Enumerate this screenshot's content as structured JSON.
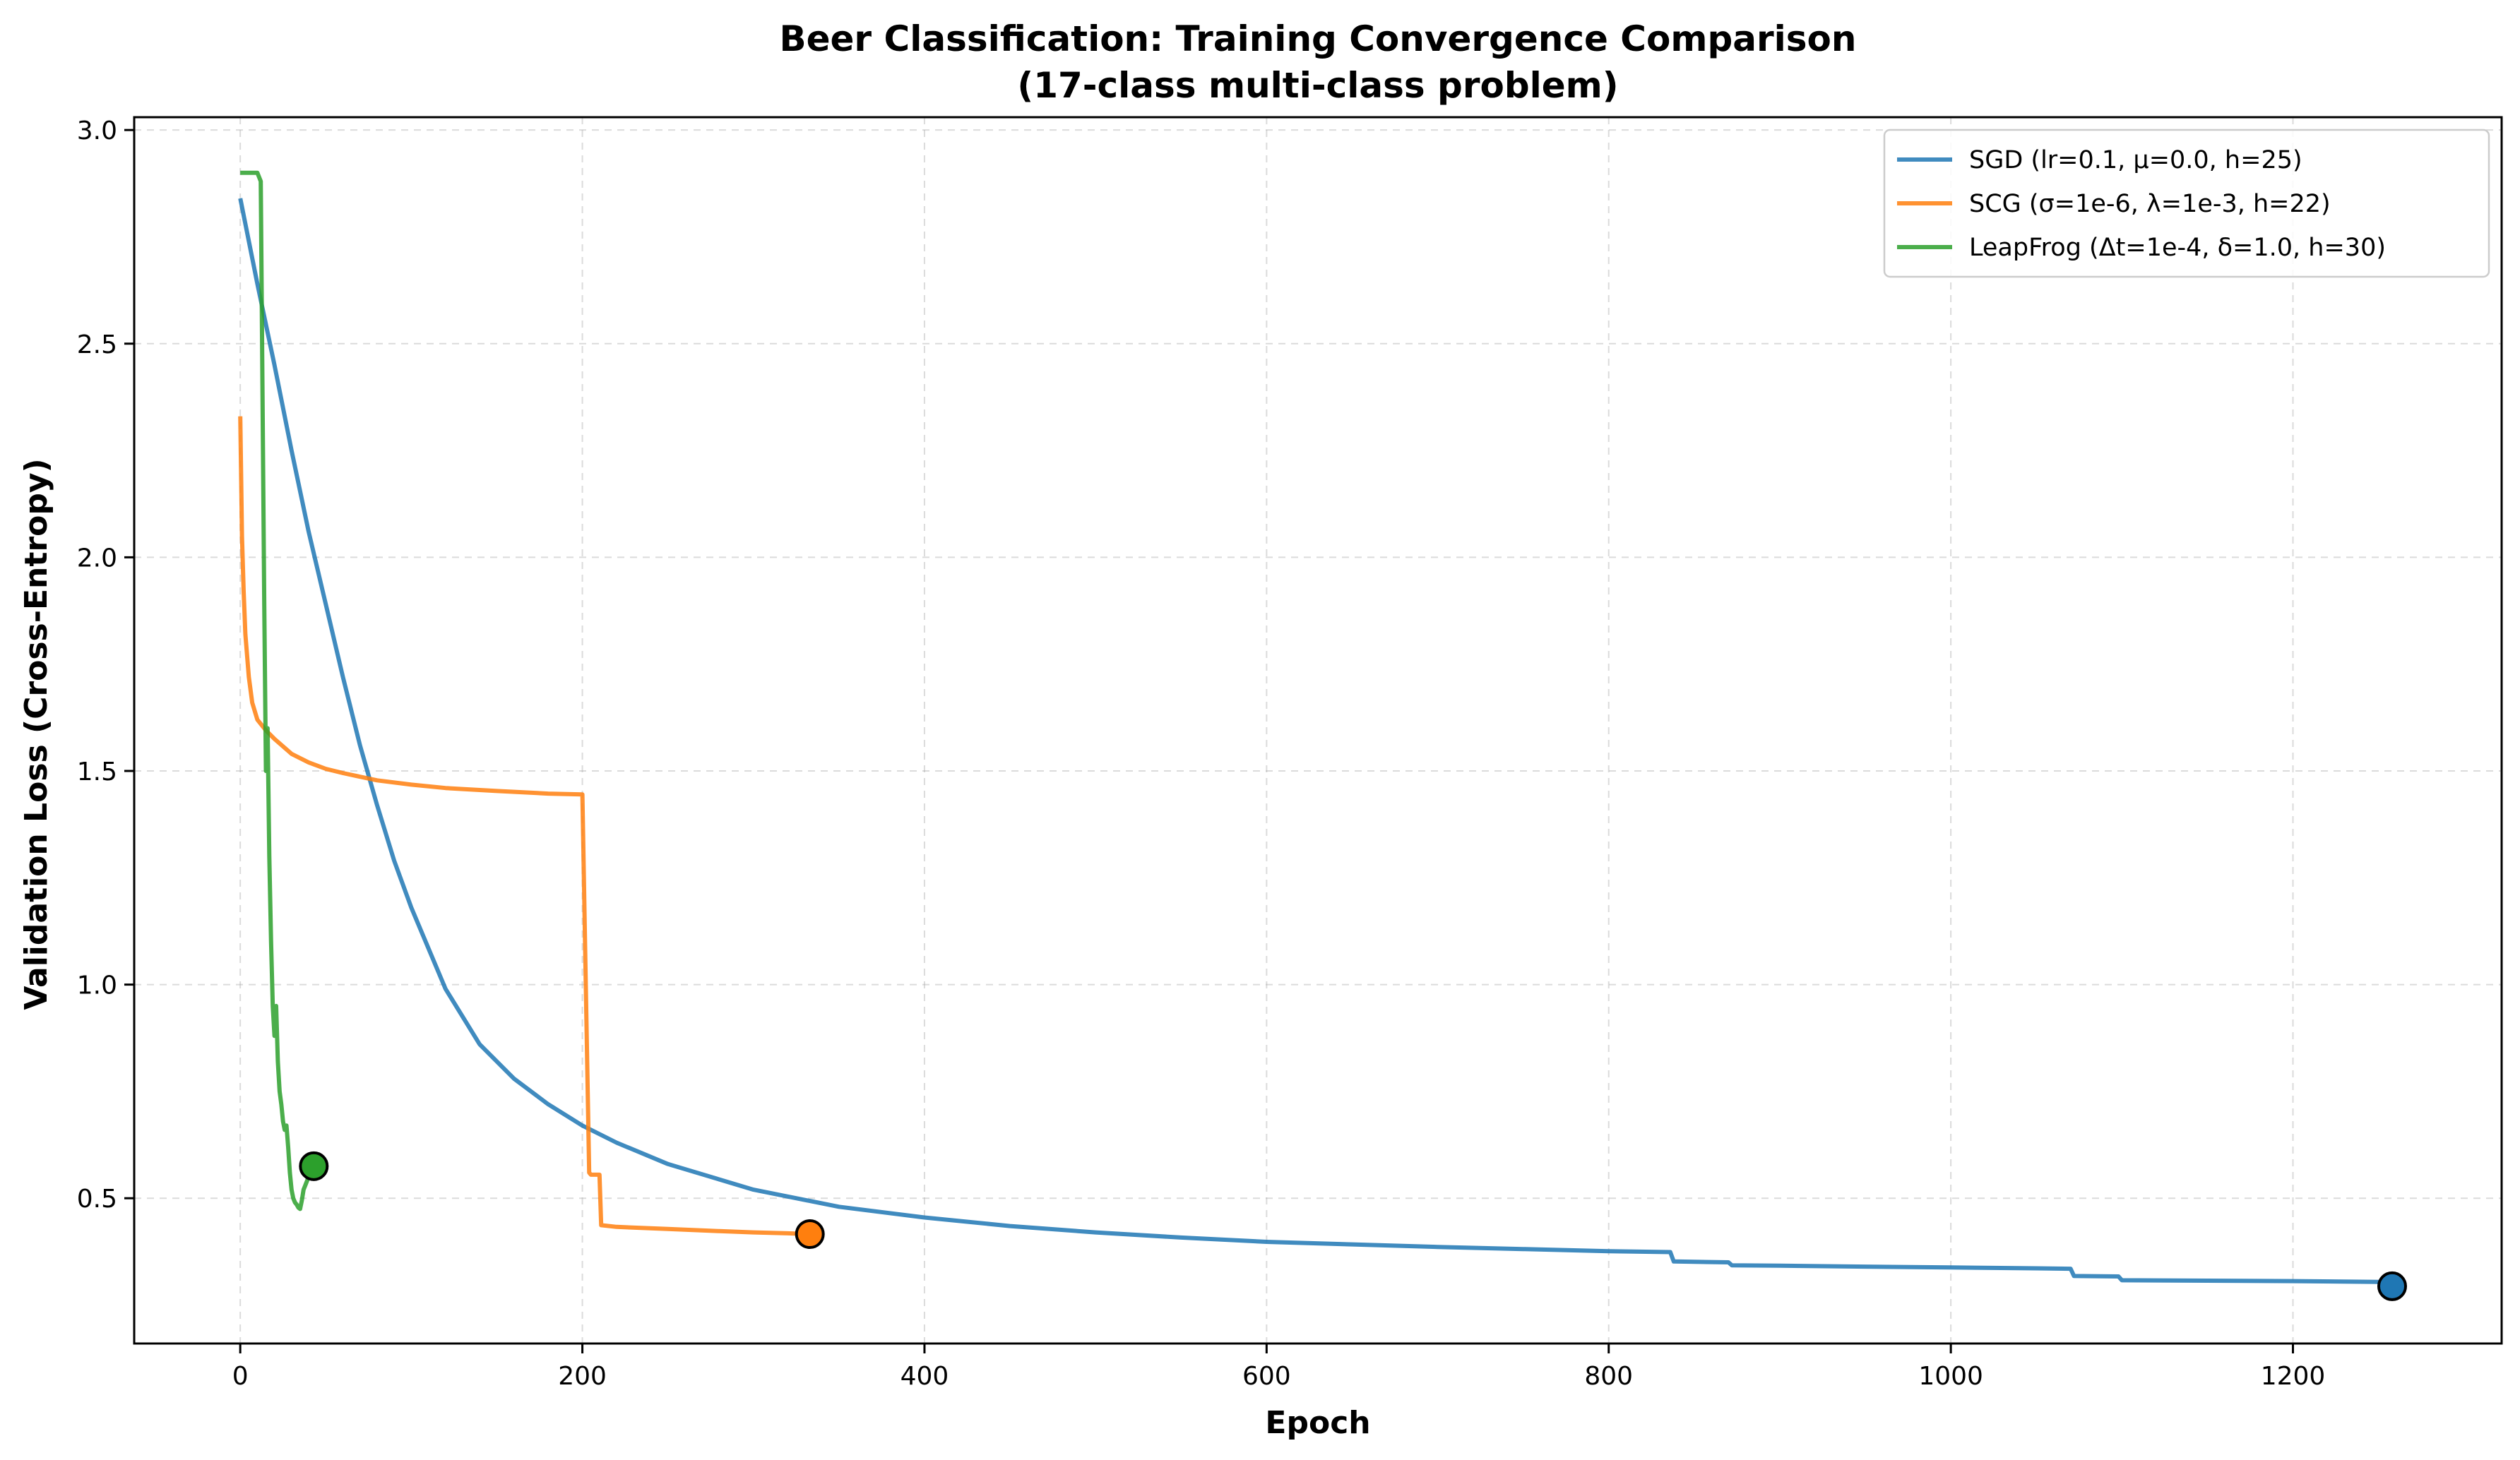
{
  "chart_data": {
    "type": "line",
    "title": "Beer Classification: Training Convergence Comparison",
    "subtitle": "(17-class multi-class problem)",
    "xlabel": "Epoch",
    "ylabel": "Validation Loss (Cross-Entropy)",
    "xlim": [
      -62,
      1322
    ],
    "ylim": [
      0.16,
      3.03
    ],
    "xticks": [
      0,
      200,
      400,
      600,
      800,
      1000,
      1200
    ],
    "yticks": [
      0.5,
      1.0,
      1.5,
      2.0,
      2.5,
      3.0
    ],
    "xtick_labels": [
      "0",
      "200",
      "400",
      "600",
      "800",
      "1000",
      "1200"
    ],
    "ytick_labels": [
      "0.5",
      "1.0",
      "1.5",
      "2.0",
      "2.5",
      "3.0"
    ],
    "grid": true,
    "legend_position": "top-right",
    "series": [
      {
        "name": "SGD (lr=0.1, μ=0.0, h=25)",
        "color": "#1f77b4",
        "x": [
          0,
          10,
          20,
          30,
          40,
          50,
          60,
          70,
          80,
          90,
          100,
          120,
          140,
          160,
          180,
          200,
          220,
          250,
          300,
          350,
          400,
          450,
          500,
          550,
          600,
          650,
          700,
          750,
          800,
          836,
          838,
          870,
          872,
          900,
          950,
          1000,
          1050,
          1070,
          1072,
          1098,
          1100,
          1150,
          1200,
          1250,
          1258
        ],
        "y": [
          2.84,
          2.64,
          2.45,
          2.25,
          2.06,
          1.89,
          1.72,
          1.56,
          1.42,
          1.29,
          1.18,
          0.99,
          0.86,
          0.78,
          0.72,
          0.67,
          0.63,
          0.58,
          0.52,
          0.48,
          0.455,
          0.435,
          0.42,
          0.408,
          0.398,
          0.392,
          0.386,
          0.381,
          0.376,
          0.374,
          0.352,
          0.35,
          0.343,
          0.342,
          0.34,
          0.338,
          0.336,
          0.335,
          0.318,
          0.317,
          0.308,
          0.307,
          0.306,
          0.304,
          0.294
        ]
      },
      {
        "name": "SCG (σ=1e-6, λ=1e-3, h=22)",
        "color": "#ff7f0e",
        "x": [
          0,
          1,
          2,
          3,
          5,
          7,
          10,
          15,
          20,
          30,
          40,
          50,
          60,
          80,
          100,
          120,
          150,
          180,
          200,
          202,
          204,
          205,
          210,
          211,
          220,
          250,
          280,
          300,
          320,
          333
        ],
        "y": [
          2.33,
          2.05,
          1.92,
          1.82,
          1.72,
          1.66,
          1.62,
          1.595,
          1.575,
          1.54,
          1.52,
          1.505,
          1.495,
          1.478,
          1.468,
          1.46,
          1.453,
          1.447,
          1.445,
          1.0,
          0.56,
          0.555,
          0.555,
          0.437,
          0.433,
          0.428,
          0.423,
          0.42,
          0.418,
          0.416
        ]
      },
      {
        "name": "LeapFrog (Δt=1e-4, δ=1.0, h=30)",
        "color": "#2ca02c",
        "x": [
          0,
          5,
          10,
          12,
          13,
          14,
          15,
          16,
          17,
          18,
          19,
          20,
          21,
          22,
          23,
          24,
          25,
          26,
          27,
          28,
          29,
          30,
          31,
          32,
          33,
          34,
          35,
          36,
          37,
          38,
          39,
          40,
          41,
          42,
          43
        ],
        "y": [
          2.9,
          2.9,
          2.9,
          2.88,
          2.4,
          1.9,
          1.5,
          1.6,
          1.3,
          1.1,
          0.95,
          0.88,
          0.95,
          0.82,
          0.75,
          0.72,
          0.68,
          0.66,
          0.67,
          0.62,
          0.56,
          0.52,
          0.5,
          0.49,
          0.485,
          0.478,
          0.475,
          0.495,
          0.52,
          0.53,
          0.54,
          0.55,
          0.56,
          0.565,
          0.575
        ]
      }
    ],
    "end_markers": [
      {
        "series": "SGD (lr=0.1, μ=0.0, h=25)",
        "x": 1258,
        "y": 0.294
      },
      {
        "series": "SCG (σ=1e-6, λ=1e-3, h=22)",
        "x": 333,
        "y": 0.416
      },
      {
        "series": "LeapFrog (Δt=1e-4, δ=1.0, h=30)",
        "x": 43,
        "y": 0.575
      }
    ]
  }
}
